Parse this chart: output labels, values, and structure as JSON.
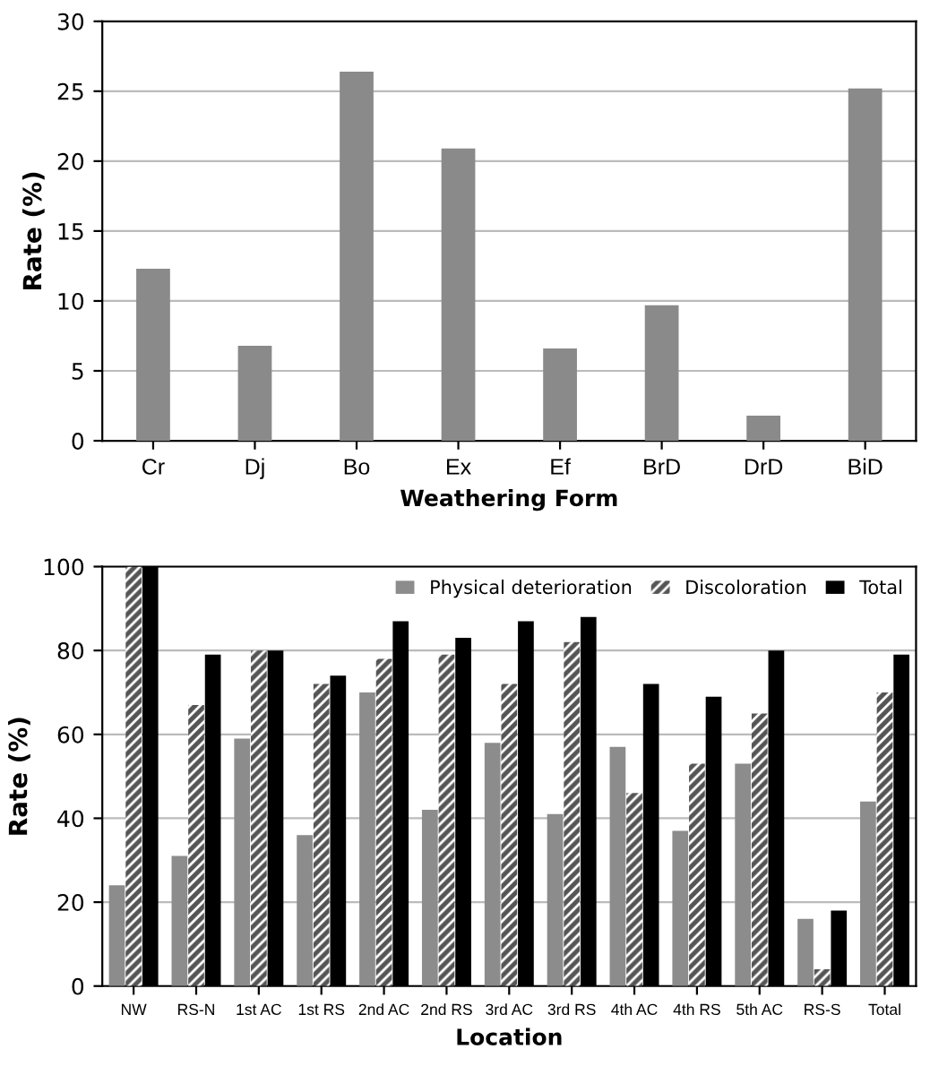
{
  "chart_data": [
    {
      "type": "bar",
      "categories": [
        "Cr",
        "Dj",
        "Bo",
        "Ex",
        "Ef",
        "BrD",
        "DrD",
        "BiD"
      ],
      "values": [
        12.3,
        6.8,
        26.4,
        20.9,
        6.6,
        9.7,
        1.8,
        25.2
      ],
      "color": "#8a8a8a",
      "xlabel": "Weathering Form",
      "ylabel": "Rate (%)",
      "ylim": [
        0,
        30
      ],
      "yticks": [
        0,
        5,
        10,
        15,
        20,
        25,
        30
      ],
      "grid": "y"
    },
    {
      "type": "bar",
      "categories": [
        "NW",
        "RS-N",
        "1st AC",
        "1st RS",
        "2nd AC",
        "2nd RS",
        "3rd AC",
        "3rd RS",
        "4th AC",
        "4th RS",
        "5th AC",
        "RS-S",
        "Total"
      ],
      "series": [
        {
          "name": "Physical deterioration",
          "color": "#8c8c8c",
          "values": [
            24,
            31,
            59,
            36,
            70,
            42,
            58,
            41,
            57,
            37,
            53,
            16,
            44
          ]
        },
        {
          "name": "Discoloration",
          "color": "#555555",
          "values": [
            100,
            67,
            80,
            72,
            78,
            79,
            72,
            82,
            46,
            53,
            65,
            4,
            70
          ]
        },
        {
          "name": "Total",
          "color": "#000000",
          "values": [
            100,
            79,
            80,
            74,
            87,
            83,
            87,
            88,
            72,
            69,
            80,
            18,
            79
          ]
        }
      ],
      "xlabel": "Location",
      "ylabel": "Rate (%)",
      "ylim": [
        0,
        100
      ],
      "yticks": [
        0,
        20,
        40,
        60,
        80,
        100
      ],
      "grid": "y",
      "legend": "top right"
    }
  ]
}
